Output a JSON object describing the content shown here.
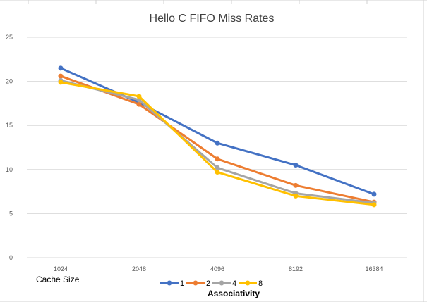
{
  "chart_data": {
    "type": "line",
    "title": "Hello C FIFO Miss Rates",
    "categories": [
      "1024",
      "2048",
      "4096",
      "8192",
      "16384"
    ],
    "y_ticks": [
      "0",
      "5",
      "10",
      "15",
      "20",
      "25"
    ],
    "ylim": [
      0,
      25
    ],
    "grid": true,
    "legend_position": "bottom",
    "legend_title": "Associativity",
    "x_note": "Cache Size",
    "series": [
      {
        "name": "1",
        "color": "#4472c4",
        "values": [
          21.5,
          17.6,
          13.0,
          10.5,
          7.2
        ]
      },
      {
        "name": "2",
        "color": "#ed7d31",
        "values": [
          20.6,
          17.4,
          11.2,
          8.2,
          6.3
        ]
      },
      {
        "name": "4",
        "color": "#a5a5a5",
        "values": [
          20.1,
          17.9,
          10.2,
          7.3,
          6.2
        ]
      },
      {
        "name": "8",
        "color": "#ffc000",
        "values": [
          19.9,
          18.3,
          9.7,
          7.0,
          6.0
        ]
      }
    ]
  }
}
